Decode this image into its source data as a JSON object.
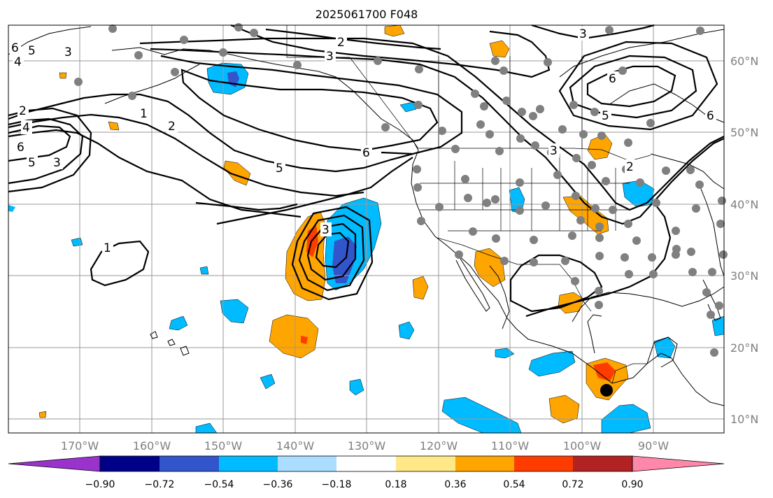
{
  "title": "2025061700 F048",
  "longitude_labels": [
    "170°W",
    "160°W",
    "150°W",
    "140°W",
    "130°W",
    "120°W",
    "110°W",
    "100°W",
    "90°W"
  ],
  "latitude_labels": [
    "60°N",
    "50°N",
    "40°N",
    "30°N",
    "20°N",
    "10°N"
  ],
  "colorbar": {
    "colors": [
      "#9933cc",
      "#000088",
      "#3355cc",
      "#00bbff",
      "#aaddff",
      "#ffffff",
      "#ffe888",
      "#ffa500",
      "#ff3c00",
      "#b22222",
      "#ff88aa"
    ],
    "tick_labels": [
      "−0.90",
      "−0.72",
      "−0.54",
      "−0.36",
      "−0.18",
      "0.18",
      "0.36",
      "0.54",
      "0.72",
      "0.90"
    ]
  },
  "contour_labels": [
    "6",
    "5",
    "3",
    "4",
    "2",
    "2",
    "3",
    "1",
    "2",
    "6",
    "5",
    "6",
    "4",
    "5",
    "3",
    "3",
    "2",
    "3",
    "6",
    "5",
    "6",
    "3",
    "1",
    "3"
  ],
  "colors": {
    "neg_light": "#00bbff",
    "neg_medium": "#3355cc",
    "pos_light": "#ffa500",
    "pos_strong": "#ff3c00",
    "station_dot": "#808080",
    "center_dot": "#000000"
  }
}
